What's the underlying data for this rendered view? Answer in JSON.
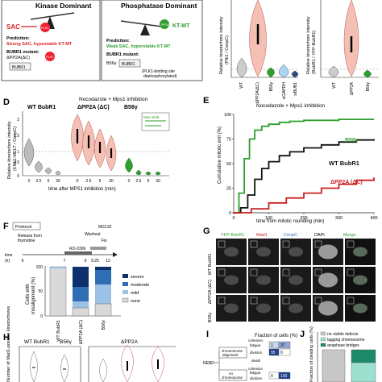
{
  "panels": {
    "D": "D",
    "E": "E",
    "F": "F",
    "G": "G",
    "H": "H",
    "I": "I",
    "J": "J"
  },
  "diagram_top": {
    "kinase_title": "Kinase Dominant",
    "phosphatase_title": "Phosphatase Dominant",
    "sac_label": "SAC",
    "ktmt_label": "KT-MT",
    "plk1": "PLK1",
    "pp2a": "PP2A",
    "prediction_left": "Prediction:",
    "prediction_left_text": "Strong SAC, hypostable KT-MT",
    "bubr1_mutant_left": "BUBR1 mutant:",
    "dpp2a_left": "ΔPP2A(ΔC)",
    "bubr1_box": "BUBR1",
    "prediction_right": "Prediction:",
    "prediction_right_text": "Weak SAC, hyperstable KT-MT",
    "bubr1_mutant_right": "BUBR1 mutant:",
    "b56g_right": "B56γ",
    "plk1_note_1": "(PLK1-binding site",
    "plk1_note_2": "dephosphorylated)"
  },
  "top_right": {
    "ylabel_1a": "Relative kinetochore intensity",
    "ylabel_1b": "(Plk1 / CenpC)",
    "ylabel_2a": "Relative kinetochore intensity",
    "ylabel_2b": "(BubR1 / YFP-BubR1)",
    "xt1": [
      "WT",
      "ΔPP2A(ΔC)",
      "B56γ",
      "siGAPDH",
      "siBUB1"
    ],
    "xt2": [
      "WT",
      "ΔPP2A",
      "B56γ"
    ]
  },
  "panel_d": {
    "heading": "Nocodazole + Mps1 inhibition",
    "groups": [
      "WT BubR1",
      "ΔPP2A (ΔC)",
      "B56γ"
    ],
    "ylabel_a": "Relative kinetochore intensity",
    "ylabel_b": "(KNL1-MELT / CenpC)",
    "xlabel": "time after MPS1 inhibition (min)",
    "xticks": [
      "0",
      "2.5",
      "5",
      "30",
      "0",
      "2.5",
      "5",
      "30",
      "0",
      "2.5",
      "5",
      "30"
    ],
    "yticks": [
      "0",
      "0.5",
      "1",
      "1.5",
      "2"
    ],
    "inset_label": "Max inhib."
  },
  "chart_data": {
    "type": "line",
    "title": "Nocodazole + Mps1 inhibition",
    "xlabel": "time from mitotic rounding (min)",
    "ylabel": "Cumulative mitotic exit (%)",
    "xlim": [
      0,
      400
    ],
    "ylim": [
      0,
      100
    ],
    "xticks": [
      0,
      100,
      200,
      300,
      400
    ],
    "yticks": [
      0,
      25,
      50,
      75,
      100
    ],
    "series": [
      {
        "name": "B56γ",
        "color": "#2e9e2e",
        "x": [
          0,
          15,
          30,
          45,
          60,
          80,
          100,
          130,
          160,
          200,
          250,
          300,
          350,
          400
        ],
        "y": [
          0,
          20,
          55,
          75,
          84,
          88,
          90,
          92,
          93,
          94,
          94,
          95,
          95,
          95
        ]
      },
      {
        "name": "WT BubR1",
        "color": "#111111",
        "x": [
          0,
          20,
          40,
          60,
          80,
          100,
          130,
          160,
          200,
          250,
          300,
          350,
          400
        ],
        "y": [
          0,
          5,
          18,
          34,
          45,
          52,
          58,
          62,
          66,
          69,
          72,
          74,
          75
        ]
      },
      {
        "name": "ΔPP2A (ΔC)",
        "color": "#cc1f1f",
        "x": [
          0,
          50,
          100,
          150,
          200,
          250,
          300,
          350,
          400
        ],
        "y": [
          0,
          4,
          10,
          15,
          20,
          25,
          29,
          33,
          36
        ]
      }
    ]
  },
  "panel_f": {
    "protocol": "Protocol",
    "release": "Release from",
    "thymidine": "thymidine",
    "ro3306": "RO-3306",
    "washout": "Washout",
    "mg132": "MG132",
    "fix": "Fix",
    "time_label": "time",
    "time_unit": "(h)",
    "times": [
      "0",
      "7",
      "9",
      "9.25",
      "12"
    ],
    "ylabel_a": "Cells with",
    "ylabel_b": "misalignment (%)",
    "yticks": [
      "0",
      "50",
      "100"
    ],
    "xt": [
      "WT BubR1",
      "ΔPP2A (ΔC)",
      "B56γ"
    ],
    "legend": [
      "severe",
      "moderate",
      "mild",
      "none"
    ],
    "colors": [
      "#0d2f6b",
      "#2f6db5",
      "#9cc1e6",
      "#d9d9d9"
    ]
  },
  "panel_g": {
    "channels": [
      "YFP-BubR1",
      "Mad1",
      "CenpC",
      "DAPI",
      "Merge"
    ],
    "rows": [
      "WT BubR1",
      "ΔPP2A (ΔC)",
      "B56γ"
    ]
  },
  "panel_h": {
    "ylabel": "Number of Mad1-positive kinetochores",
    "left_groups": [
      "WT BubR1",
      "B56γ"
    ],
    "right_group": "ΔPP2A"
  },
  "panel_i": {
    "heading": "Fraction of cells (%)",
    "nebd": "NEBD",
    "chromosome": "chromosome",
    "alignment": "alignment",
    "no": "no",
    "chromosome2": "chromosome",
    "cohesion": "cohesion",
    "fatigue": "fatigue",
    "division": "division",
    "death": "death",
    "cohesion2": "cohesion",
    "fatigue2": "fatigue",
    "division2": "division",
    "values_top": [
      "1",
      "37"
    ],
    "values_mid": [
      "95",
      "0"
    ],
    "values_bot": [
      "0",
      "100"
    ]
  },
  "panel_j": {
    "ylabel": "Fraction of dividing cells (%)",
    "legend": [
      "no visible defects",
      "lagging chromosome",
      "anaphase bridges"
    ],
    "colors": [
      "#c8c8c8",
      "#9ee0cf",
      "#1f8a6a"
    ]
  }
}
